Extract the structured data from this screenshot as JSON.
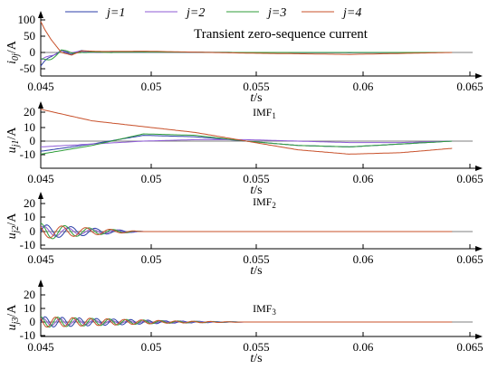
{
  "colors": {
    "j1": "#2b3ea8",
    "j2": "#8e5bd6",
    "j3": "#2f9e3a",
    "j4": "#c8502a",
    "axis": "#000000"
  },
  "legend": [
    {
      "label": "j=1",
      "color": "#2b3ea8"
    },
    {
      "label": "j=2",
      "color": "#8e5bd6"
    },
    {
      "label": "j=3",
      "color": "#2f9e3a"
    },
    {
      "label": "j=4",
      "color": "#c8502a"
    }
  ],
  "chart_data": [
    {
      "type": "line",
      "title": "Transient zero-sequence current",
      "ylabel": "i0j/A",
      "xlabel": "t/s",
      "xlim": [
        0.045,
        0.066
      ],
      "ylim": [
        -50,
        100
      ],
      "xticks": [
        "0.045",
        "0.05",
        "0.055",
        "0.06",
        "0.065"
      ],
      "yticks": [
        "100",
        "50",
        "0",
        "-50"
      ],
      "series": [
        {
          "name": "j=1",
          "x": [
            0.045,
            0.0455,
            0.046,
            0.0465,
            0.047,
            0.048,
            0.05,
            0.055,
            0.06,
            0.065
          ],
          "y": [
            -42,
            -20,
            12,
            -6,
            4,
            1,
            1,
            0,
            -1,
            0
          ]
        },
        {
          "name": "j=2",
          "x": [
            0.045,
            0.0455,
            0.046,
            0.0465,
            0.047,
            0.048,
            0.05,
            0.055,
            0.06,
            0.065
          ],
          "y": [
            -35,
            -10,
            10,
            -4,
            3,
            1,
            0,
            0,
            0,
            0
          ]
        },
        {
          "name": "j=3",
          "x": [
            0.045,
            0.0455,
            0.046,
            0.0465,
            0.047,
            0.048,
            0.05,
            0.055,
            0.06,
            0.065
          ],
          "y": [
            -30,
            -15,
            8,
            -5,
            2,
            0,
            1,
            0,
            0,
            0
          ]
        },
        {
          "name": "j=4",
          "x": [
            0.045,
            0.0452,
            0.0455,
            0.046,
            0.0465,
            0.047,
            0.048,
            0.05,
            0.055,
            0.06,
            0.065
          ],
          "y": [
            95,
            70,
            40,
            0,
            -8,
            5,
            3,
            4,
            -2,
            -6,
            0
          ]
        }
      ]
    },
    {
      "type": "line",
      "title": "IMF1",
      "ylabel": "uj1/A",
      "xlabel": "t/s",
      "xlim": [
        0.045,
        0.066
      ],
      "ylim": [
        -12,
        25
      ],
      "xticks": [
        "0.045",
        "0.05",
        "0.055",
        "0.06",
        "0.065"
      ],
      "yticks": [
        "20",
        "10",
        "0",
        "-10"
      ],
      "series": [
        {
          "name": "j=1",
          "x": [
            0.045,
            0.0475,
            0.05,
            0.0525,
            0.055,
            0.0575,
            0.06,
            0.0625,
            0.065
          ],
          "y": [
            -7,
            -2,
            4,
            3,
            0,
            -3,
            -4,
            -2,
            0
          ]
        },
        {
          "name": "j=2",
          "x": [
            0.045,
            0.0475,
            0.05,
            0.0525,
            0.055,
            0.0575,
            0.06,
            0.0625,
            0.065
          ],
          "y": [
            -4,
            -2,
            0,
            1,
            1,
            0,
            -1,
            -1,
            0
          ]
        },
        {
          "name": "j=3",
          "x": [
            0.045,
            0.0475,
            0.05,
            0.0525,
            0.055,
            0.0575,
            0.06,
            0.0625,
            0.065
          ],
          "y": [
            -9,
            -3,
            5,
            4,
            0,
            -3,
            -4,
            -2,
            0
          ]
        },
        {
          "name": "j=4",
          "x": [
            0.045,
            0.0475,
            0.05,
            0.0525,
            0.055,
            0.0575,
            0.06,
            0.0625,
            0.065
          ],
          "y": [
            22,
            14,
            10,
            6,
            0,
            -6,
            -9,
            -8,
            -5
          ]
        }
      ]
    },
    {
      "type": "line",
      "title": "IMF2",
      "ylabel": "uj2/A",
      "xlabel": "t/s",
      "xlim": [
        0.045,
        0.066
      ],
      "ylim": [
        -10,
        25
      ],
      "xticks": [
        "0.045",
        "0.05",
        "0.055",
        "0.06",
        "0.065"
      ],
      "yticks": [
        "20",
        "10",
        "0",
        "-10"
      ],
      "series": [
        {
          "name": "j=1",
          "x": [
            0.045,
            0.047,
            0.049,
            0.05,
            0.055,
            0.065
          ],
          "y": [
            5,
            3,
            1,
            0,
            0,
            0
          ]
        },
        {
          "name": "j=2",
          "x": [
            0.045,
            0.047,
            0.049,
            0.05,
            0.055,
            0.065
          ],
          "y": [
            4,
            2,
            1,
            0,
            0,
            0
          ]
        },
        {
          "name": "j=3",
          "x": [
            0.045,
            0.047,
            0.049,
            0.05,
            0.055,
            0.065
          ],
          "y": [
            6,
            3,
            1,
            0,
            0,
            0
          ]
        },
        {
          "name": "j=4",
          "x": [
            0.045,
            0.047,
            0.049,
            0.05,
            0.055,
            0.065
          ],
          "y": [
            5,
            3,
            1,
            0,
            0,
            0
          ]
        }
      ]
    },
    {
      "type": "line",
      "title": "IMF3",
      "ylabel": "uj3/A",
      "xlabel": "t/s",
      "xlim": [
        0.045,
        0.066
      ],
      "ylim": [
        -10,
        25
      ],
      "xticks": [
        "0.045",
        "0.05",
        "0.055",
        "0.06",
        "0.065"
      ],
      "yticks": [
        "20",
        "10",
        "0",
        "-10"
      ],
      "series": [
        {
          "name": "j=1",
          "x": [
            0.045,
            0.047,
            0.049,
            0.051,
            0.055,
            0.065
          ],
          "y": [
            4,
            3,
            2,
            1,
            0,
            0
          ]
        },
        {
          "name": "j=2",
          "x": [
            0.045,
            0.047,
            0.049,
            0.051,
            0.055,
            0.065
          ],
          "y": [
            3,
            2,
            1,
            1,
            0,
            0
          ]
        },
        {
          "name": "j=3",
          "x": [
            0.045,
            0.047,
            0.049,
            0.051,
            0.055,
            0.065
          ],
          "y": [
            4,
            3,
            2,
            1,
            0,
            0
          ]
        },
        {
          "name": "j=4",
          "x": [
            0.045,
            0.047,
            0.049,
            0.051,
            0.055,
            0.065
          ],
          "y": [
            4,
            3,
            2,
            1,
            0,
            0
          ]
        }
      ]
    }
  ]
}
